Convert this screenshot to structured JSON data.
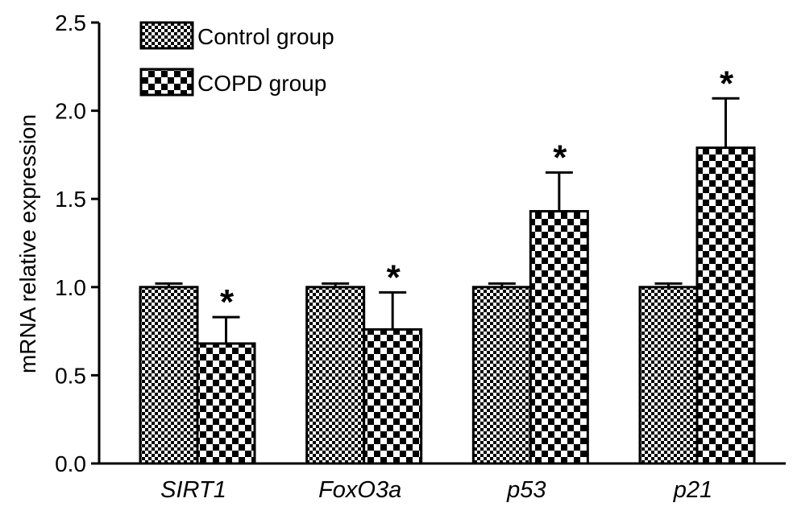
{
  "chart_data": {
    "type": "bar",
    "title": "",
    "xlabel": "",
    "ylabel": "mRNA relative expression",
    "ylim": [
      0,
      2.5
    ],
    "yticks": [
      "0.0",
      "0.5",
      "1.0",
      "1.5",
      "2.0",
      "2.5"
    ],
    "categories": [
      "SIRT1",
      "FoxO3a",
      "p53",
      "p21"
    ],
    "categories_italic": true,
    "legend_position": "top-left",
    "series": [
      {
        "name": "Control group",
        "pattern": "fine-checker",
        "color": "#000000",
        "values": [
          1.0,
          1.0,
          1.0,
          1.0
        ],
        "errors": [
          0.02,
          0.02,
          0.02,
          0.02
        ],
        "significance": [
          "",
          "",
          "",
          ""
        ]
      },
      {
        "name": "COPD group",
        "pattern": "coarse-checker",
        "color": "#000000",
        "values": [
          0.68,
          0.76,
          1.43,
          1.79
        ],
        "errors": [
          0.15,
          0.21,
          0.22,
          0.28
        ],
        "significance": [
          "*",
          "*",
          "*",
          "*"
        ]
      }
    ],
    "grid": false
  }
}
